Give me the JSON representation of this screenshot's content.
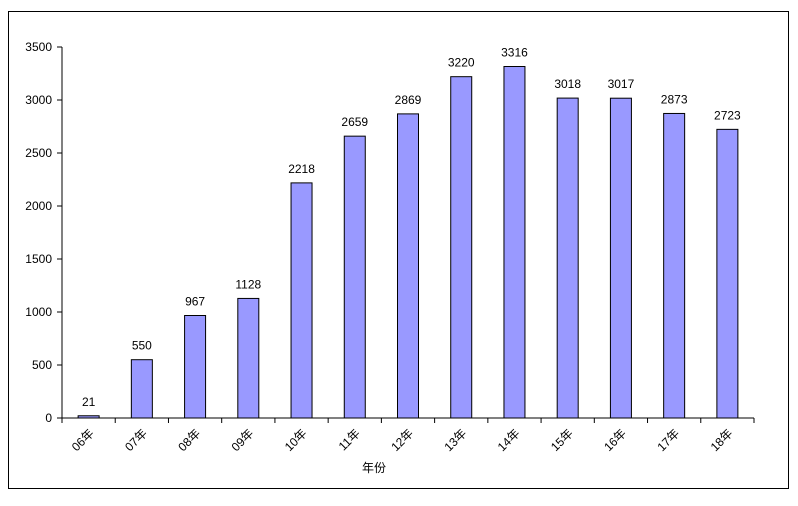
{
  "chart_data": {
    "type": "bar",
    "title": "",
    "xlabel": "年份",
    "ylabel": "",
    "categories": [
      "06年",
      "07年",
      "08年",
      "09年",
      "10年",
      "11年",
      "12年",
      "13年",
      "14年",
      "15年",
      "16年",
      "17年",
      "18年"
    ],
    "values": [
      21,
      550,
      967,
      1128,
      2218,
      2659,
      2869,
      3220,
      3316,
      3018,
      3017,
      2873,
      2723
    ],
    "ylim": [
      0,
      3500
    ],
    "yticks": [
      0,
      500,
      1000,
      1500,
      2000,
      2500,
      3000,
      3500
    ],
    "grid": false,
    "legend": "none",
    "colors": {
      "bar_fill": "#9999ff",
      "bar_stroke": "#000000",
      "axis": "#000000",
      "frame": "#000000",
      "background": "#ffffff"
    }
  }
}
